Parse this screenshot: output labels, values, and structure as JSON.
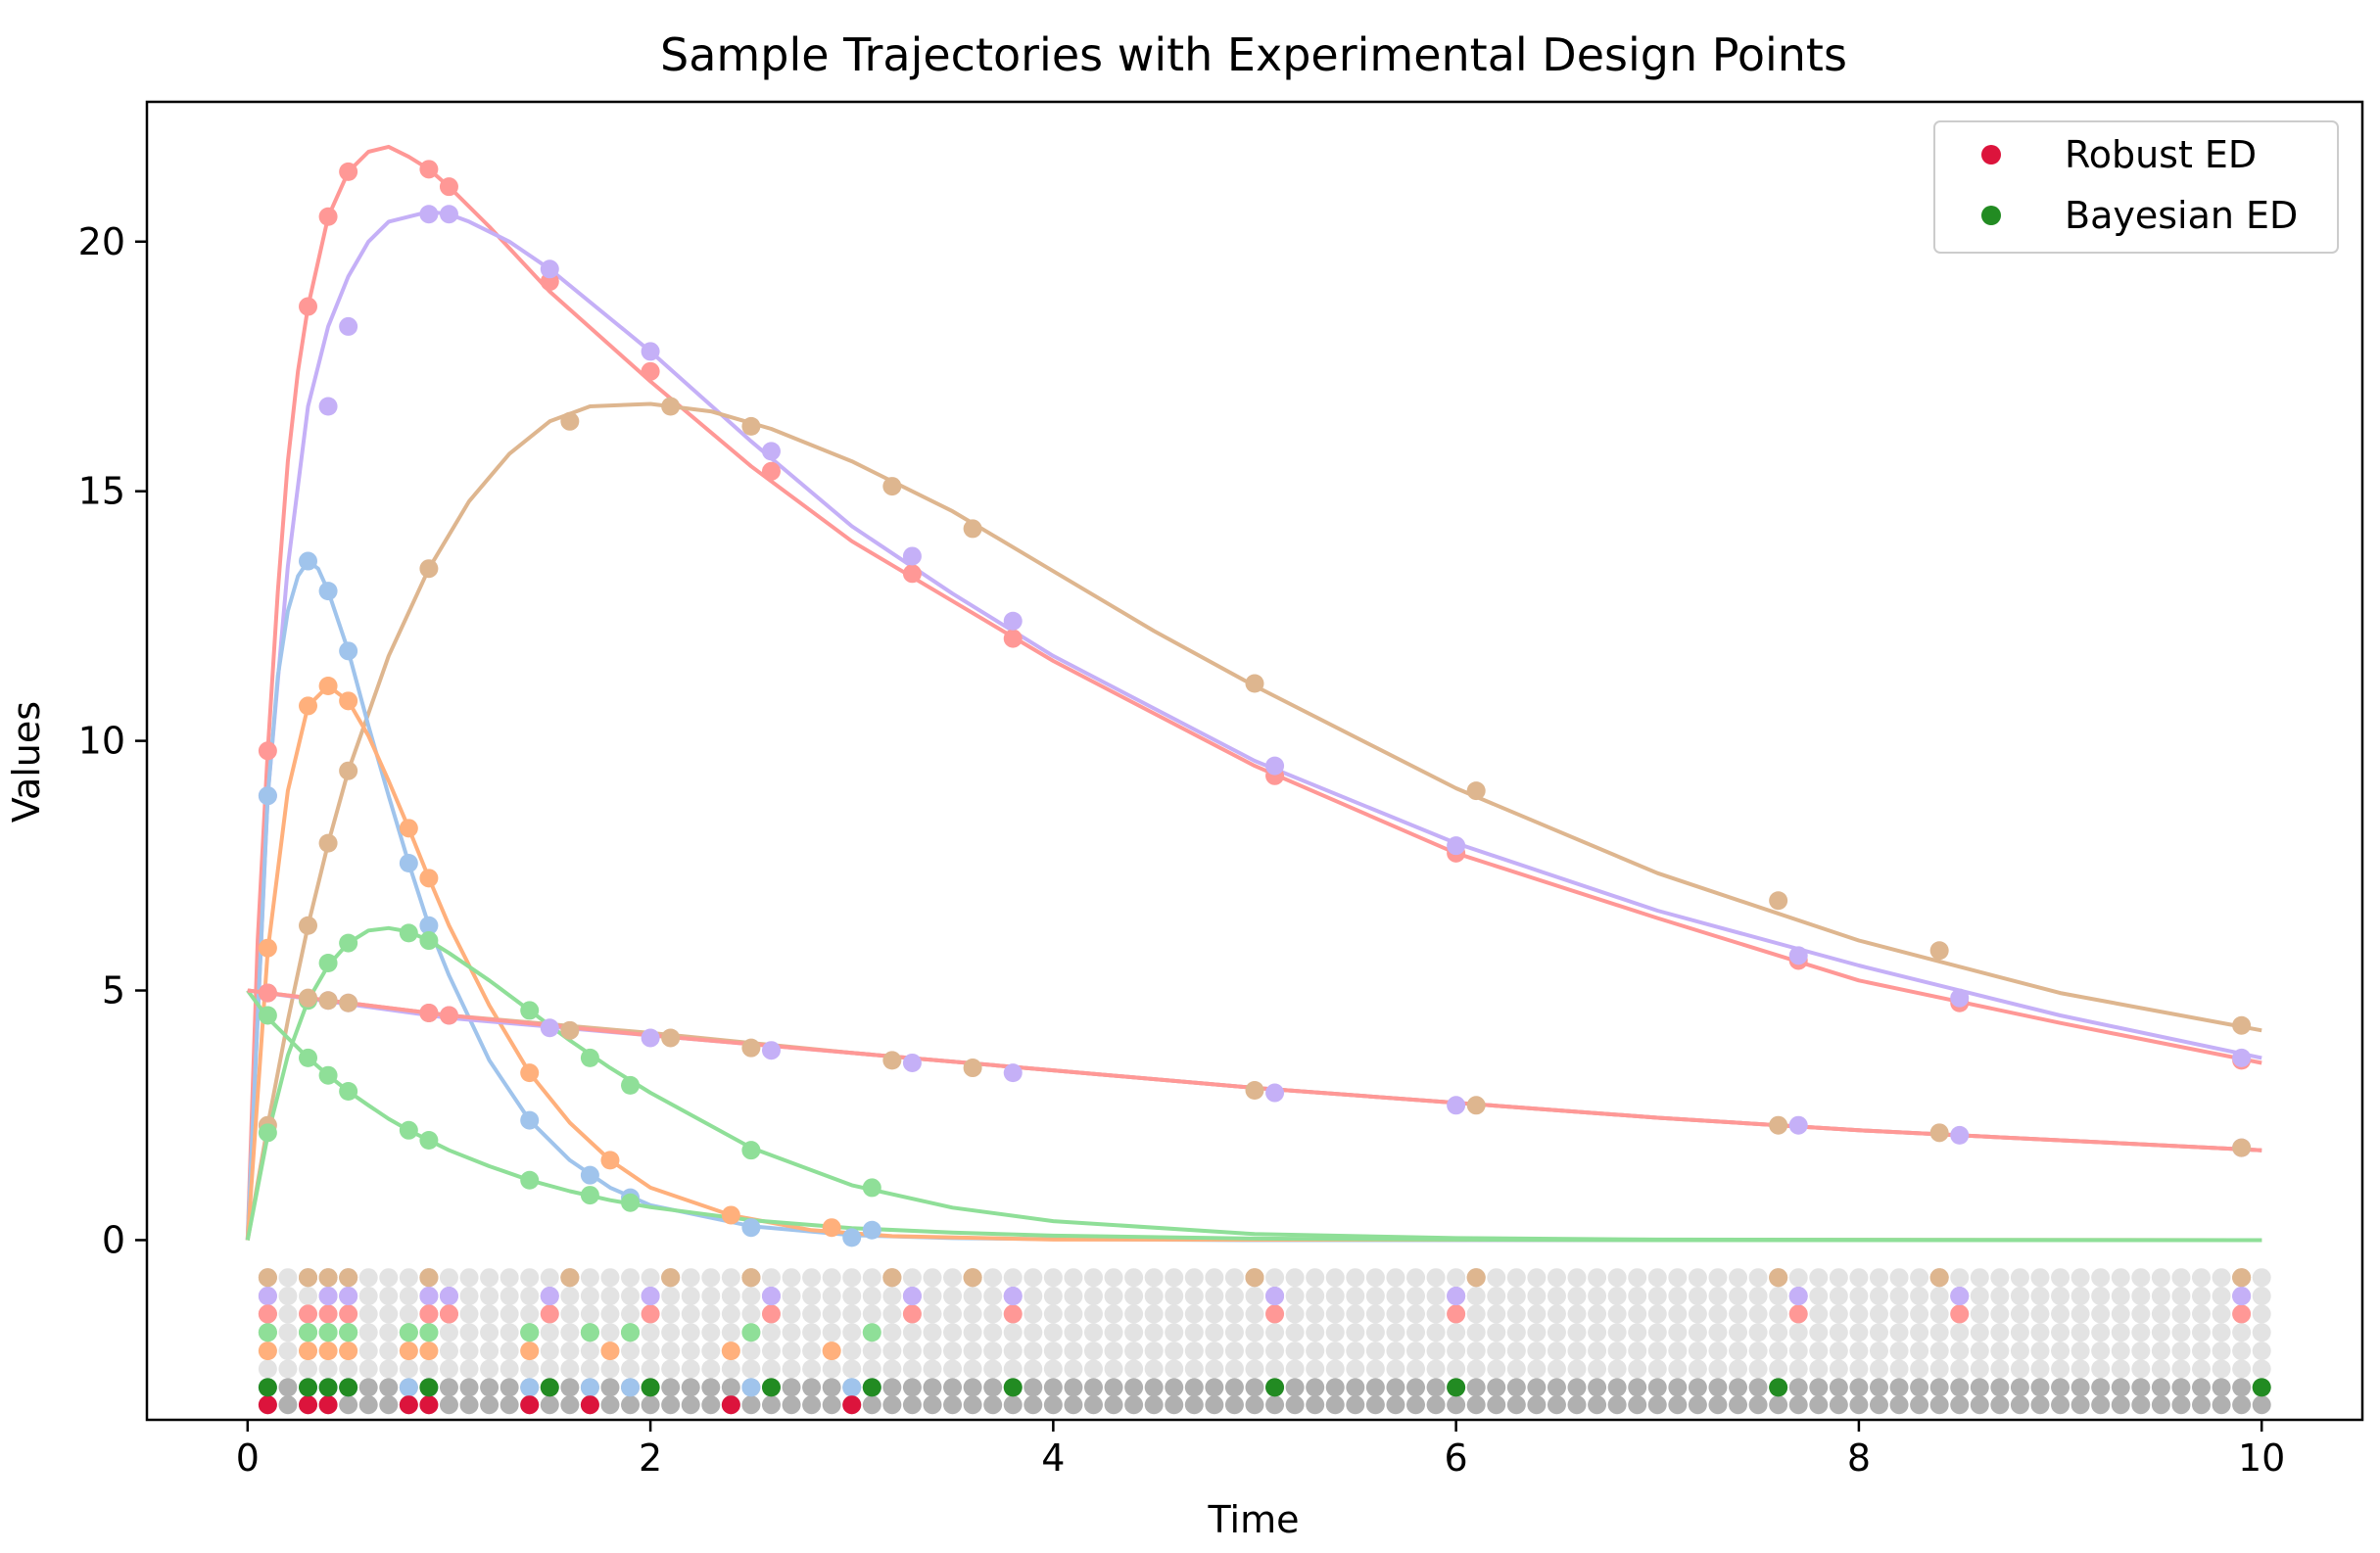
{
  "chart_data": {
    "type": "line",
    "title": "Sample Trajectories with Experimental Design Points",
    "xlabel": "Time",
    "ylabel": "Values",
    "xlim": [
      -0.5,
      10.5
    ],
    "ylim": [
      -3.6,
      22.8
    ],
    "xticks": [
      0,
      2,
      4,
      6,
      8,
      10
    ],
    "xtick_labels": [
      "0",
      "2",
      "4",
      "6",
      "8",
      "10"
    ],
    "yticks": [
      0,
      5,
      10,
      15,
      20
    ],
    "ytick_labels": [
      "0",
      "5",
      "10",
      "15",
      "20"
    ],
    "grid": false,
    "legend_position": "top-right",
    "legend": [
      {
        "label": "Robust ED",
        "color": "#dc143c"
      },
      {
        "label": "Bayesian ED",
        "color": "#228b22"
      }
    ],
    "colors": {
      "red": "#ff9896",
      "purple": "#c5b0f7",
      "tan": "#deb68f",
      "blue": "#a0c4ec",
      "orange": "#ffb07c",
      "green": "#8fdf98",
      "robust": "#dc143c",
      "bayesian": "#228b22",
      "grid_light": "#e3e3e3",
      "grid_dark": "#b0b0b0"
    },
    "candidate_times": [
      0.1,
      0.2,
      0.3,
      0.4,
      0.5,
      0.6,
      0.7,
      0.8,
      0.9,
      1.0,
      1.1,
      1.2,
      1.3,
      1.4,
      1.5,
      1.6,
      1.7,
      1.8,
      1.9,
      2.0,
      2.1,
      2.2,
      2.3,
      2.4,
      2.5,
      2.6,
      2.7,
      2.8,
      2.9,
      3.0,
      3.1,
      3.2,
      3.3,
      3.4,
      3.5,
      3.6,
      3.7,
      3.8,
      3.9,
      4.0,
      4.1,
      4.2,
      4.3,
      4.4,
      4.5,
      4.6,
      4.7,
      4.8,
      4.9,
      5.0,
      5.1,
      5.2,
      5.3,
      5.4,
      5.5,
      5.6,
      5.7,
      5.8,
      5.9,
      6.0,
      6.1,
      6.2,
      6.3,
      6.4,
      6.5,
      6.6,
      6.7,
      6.8,
      6.9,
      7.0,
      7.1,
      7.2,
      7.3,
      7.4,
      7.5,
      7.6,
      7.7,
      7.8,
      7.9,
      8.0,
      8.1,
      8.2,
      8.3,
      8.4,
      8.5,
      8.6,
      8.7,
      8.8,
      8.9,
      9.0,
      9.1,
      9.2,
      9.3,
      9.4,
      9.5,
      9.6,
      9.7,
      9.8,
      9.9,
      10.0
    ],
    "design_row_values": [
      -0.75,
      -1.12,
      -1.48,
      -1.85,
      -2.22,
      -2.58,
      -2.95,
      -3.3
    ],
    "series": [
      {
        "key": "red_fast",
        "color_key": "red",
        "row": 2,
        "x": [
          0,
          0.05,
          0.1,
          0.15,
          0.2,
          0.25,
          0.3,
          0.4,
          0.5,
          0.6,
          0.7,
          0.8,
          0.9,
          1.0,
          1.2,
          1.5,
          2.0,
          2.5,
          3.0,
          3.5,
          4.0,
          5.0,
          6.0,
          7.0,
          8.0,
          9.0,
          10.0
        ],
        "y": [
          0,
          6.0,
          9.8,
          13.0,
          15.6,
          17.4,
          18.7,
          20.5,
          21.4,
          21.8,
          21.9,
          21.7,
          21.45,
          21.1,
          20.3,
          19.0,
          17.2,
          15.5,
          14.0,
          12.8,
          11.6,
          9.5,
          7.75,
          6.45,
          5.2,
          4.35,
          3.55
        ],
        "points_x": [
          0.1,
          0.3,
          0.4,
          0.5,
          0.9,
          1.0,
          1.5,
          2.0,
          2.6,
          3.3,
          3.8,
          5.1,
          6.0,
          7.7,
          8.5,
          9.9
        ],
        "points_y": [
          9.8,
          18.7,
          20.5,
          21.4,
          21.45,
          21.1,
          19.2,
          17.4,
          15.4,
          13.35,
          12.05,
          9.3,
          7.75,
          5.6,
          4.75,
          3.6
        ]
      },
      {
        "key": "purple",
        "color_key": "purple",
        "row": 1,
        "x": [
          0,
          0.1,
          0.2,
          0.3,
          0.4,
          0.5,
          0.6,
          0.7,
          0.8,
          0.9,
          1.0,
          1.1,
          1.3,
          1.5,
          2.0,
          2.5,
          3.0,
          3.5,
          4.0,
          5.0,
          6.0,
          7.0,
          8.0,
          9.0,
          10.0
        ],
        "y": [
          0,
          8.9,
          13.5,
          16.7,
          18.3,
          19.3,
          20.0,
          20.4,
          20.5,
          20.6,
          20.55,
          20.4,
          20.0,
          19.45,
          17.8,
          16.0,
          14.3,
          12.95,
          11.7,
          9.6,
          7.95,
          6.6,
          5.5,
          4.5,
          3.65
        ],
        "points_x": [
          0.1,
          0.4,
          0.5,
          0.9,
          1.0,
          1.5,
          2.0,
          2.6,
          3.3,
          3.8,
          5.1,
          6.0,
          7.7,
          8.5,
          9.9
        ],
        "points_y": [
          8.9,
          16.7,
          18.3,
          20.55,
          20.55,
          19.45,
          17.8,
          15.8,
          13.7,
          12.4,
          9.5,
          7.9,
          5.7,
          4.85,
          3.65
        ]
      },
      {
        "key": "tan_slow",
        "color_key": "tan",
        "row": 0,
        "x": [
          0,
          0.1,
          0.2,
          0.3,
          0.4,
          0.5,
          0.7,
          0.9,
          1.1,
          1.3,
          1.5,
          1.7,
          2.0,
          2.3,
          2.6,
          3.0,
          3.5,
          4.0,
          4.5,
          5.0,
          6.0,
          7.0,
          8.0,
          9.0,
          10.0
        ],
        "y": [
          0,
          2.3,
          4.4,
          6.3,
          7.95,
          9.4,
          11.7,
          13.45,
          14.8,
          15.75,
          16.4,
          16.7,
          16.75,
          16.6,
          16.25,
          15.6,
          14.6,
          13.4,
          12.2,
          11.1,
          9.05,
          7.35,
          6.0,
          4.95,
          4.2
        ],
        "points_x": [
          0.1,
          0.3,
          0.4,
          0.5,
          0.9,
          1.6,
          2.1,
          2.5,
          3.2,
          3.6,
          5.0,
          6.1,
          7.6,
          8.4,
          9.9
        ],
        "points_y": [
          2.3,
          6.3,
          7.95,
          9.4,
          13.45,
          16.4,
          16.7,
          16.3,
          15.1,
          14.25,
          11.15,
          9.0,
          6.8,
          5.8,
          4.3
        ]
      },
      {
        "key": "blue",
        "color_key": "blue",
        "row": 6,
        "x": [
          0,
          0.1,
          0.15,
          0.2,
          0.25,
          0.3,
          0.35,
          0.4,
          0.5,
          0.6,
          0.7,
          0.8,
          0.9,
          1.0,
          1.2,
          1.4,
          1.6,
          1.8,
          2.0,
          2.5,
          3.0,
          3.5,
          4.0,
          5.0,
          6.0,
          10.0
        ],
        "y": [
          0,
          8.9,
          11.3,
          12.6,
          13.3,
          13.6,
          13.45,
          13.0,
          11.8,
          10.3,
          8.9,
          7.55,
          6.3,
          5.3,
          3.6,
          2.4,
          1.6,
          1.05,
          0.7,
          0.28,
          0.1,
          0.04,
          0.02,
          0,
          0,
          0
        ],
        "points_x": [
          0.1,
          0.3,
          0.4,
          0.5,
          0.8,
          0.9,
          1.4,
          1.7,
          1.9,
          2.5,
          3.0,
          3.1
        ],
        "points_y": [
          8.9,
          13.6,
          13.0,
          11.8,
          7.55,
          6.3,
          2.4,
          1.3,
          0.85,
          0.25,
          0.05,
          0.2
        ]
      },
      {
        "key": "orange",
        "color_key": "orange",
        "row": 4,
        "x": [
          0,
          0.1,
          0.2,
          0.3,
          0.4,
          0.5,
          0.6,
          0.7,
          0.8,
          0.9,
          1.0,
          1.2,
          1.4,
          1.6,
          1.8,
          2.0,
          2.4,
          2.8,
          3.2,
          4.0,
          10.0
        ],
        "y": [
          0,
          5.8,
          9.0,
          10.7,
          11.1,
          10.8,
          10.1,
          9.2,
          8.25,
          7.25,
          6.3,
          4.7,
          3.35,
          2.35,
          1.6,
          1.05,
          0.5,
          0.2,
          0.08,
          0.01,
          0
        ],
        "points_x": [
          0.1,
          0.3,
          0.4,
          0.5,
          0.8,
          0.9,
          1.4,
          1.8,
          2.4,
          2.9
        ],
        "points_y": [
          5.85,
          10.7,
          11.1,
          10.8,
          8.25,
          7.25,
          3.35,
          1.6,
          0.5,
          0.25
        ]
      },
      {
        "key": "green_hump",
        "color_key": "green",
        "row": 3,
        "x": [
          0,
          0.1,
          0.2,
          0.3,
          0.4,
          0.5,
          0.6,
          0.7,
          0.8,
          0.9,
          1.0,
          1.2,
          1.4,
          1.6,
          1.8,
          2.0,
          2.5,
          3.0,
          3.5,
          4.0,
          5.0,
          6.0,
          7.0,
          10.0
        ],
        "y": [
          0,
          2.1,
          3.7,
          4.8,
          5.5,
          5.95,
          6.2,
          6.25,
          6.18,
          6.0,
          5.75,
          5.2,
          4.6,
          4.0,
          3.45,
          2.95,
          1.85,
          1.1,
          0.65,
          0.38,
          0.12,
          0.04,
          0.01,
          0
        ],
        "points_x": [
          0.1,
          0.3,
          0.4,
          0.5,
          0.8,
          0.9,
          1.4,
          1.7,
          1.9,
          2.5,
          3.1
        ],
        "points_y": [
          2.15,
          4.8,
          5.55,
          5.95,
          6.15,
          6.0,
          4.6,
          3.65,
          3.1,
          1.8,
          1.05
        ]
      },
      {
        "key": "green_decay",
        "color_key": "green",
        "row": 3,
        "x": [
          0,
          0.1,
          0.2,
          0.3,
          0.4,
          0.5,
          0.6,
          0.7,
          0.8,
          0.9,
          1.0,
          1.2,
          1.4,
          1.6,
          1.8,
          2.0,
          2.5,
          3.0,
          3.5,
          4.0,
          5.0,
          6.0,
          7.0,
          10.0
        ],
        "y": [
          5.0,
          4.45,
          4.05,
          3.65,
          3.3,
          2.98,
          2.7,
          2.43,
          2.2,
          2.0,
          1.8,
          1.48,
          1.2,
          0.98,
          0.8,
          0.66,
          0.4,
          0.24,
          0.15,
          0.09,
          0.03,
          0.01,
          0,
          0
        ],
        "points_x": [
          0.1,
          0.3,
          0.4,
          0.5,
          0.8,
          0.9,
          1.4,
          1.7,
          1.9
        ],
        "points_y": [
          4.5,
          3.65,
          3.3,
          2.98,
          2.2,
          2.0,
          1.2,
          0.9,
          0.75
        ]
      },
      {
        "key": "purple_linear",
        "color_key": "purple",
        "row": 1,
        "x": [
          0,
          1,
          2,
          3,
          4,
          5,
          6,
          7,
          8,
          9,
          10
        ],
        "y": [
          5.0,
          4.45,
          4.1,
          3.75,
          3.4,
          3.05,
          2.75,
          2.45,
          2.2,
          2.0,
          1.8
        ],
        "points_x": [
          0.1,
          0.4,
          0.5,
          0.9,
          1.0,
          1.5,
          2.0,
          2.6,
          3.3,
          3.8,
          5.1,
          6.0,
          7.7,
          8.5,
          9.9
        ],
        "points_y": [
          4.95,
          4.8,
          4.75,
          4.55,
          4.5,
          4.25,
          4.05,
          3.8,
          3.55,
          3.35,
          2.95,
          2.7,
          2.3,
          2.1,
          1.85
        ]
      },
      {
        "key": "tan_linear",
        "color_key": "tan",
        "row": 0,
        "x": [
          0,
          1,
          2,
          3,
          4,
          5,
          6,
          7,
          8,
          9,
          10
        ],
        "y": [
          5.0,
          4.5,
          4.15,
          3.75,
          3.4,
          3.05,
          2.75,
          2.45,
          2.2,
          2.0,
          1.8
        ],
        "points_x": [
          0.1,
          0.3,
          0.4,
          0.5,
          0.9,
          1.6,
          2.1,
          2.5,
          3.2,
          3.6,
          5.0,
          6.1,
          7.6,
          8.4,
          9.9
        ],
        "points_y": [
          4.95,
          4.85,
          4.8,
          4.75,
          4.55,
          4.2,
          4.05,
          3.85,
          3.6,
          3.45,
          3.0,
          2.7,
          2.3,
          2.15,
          1.85
        ]
      },
      {
        "key": "red_linear",
        "color_key": "red",
        "row": 2,
        "x": [
          0,
          1,
          2,
          3,
          4,
          5,
          6,
          7,
          8,
          9,
          10
        ],
        "y": [
          5.0,
          4.5,
          4.1,
          3.75,
          3.4,
          3.05,
          2.75,
          2.45,
          2.2,
          2.0,
          1.8
        ],
        "points_x": [
          0.1,
          0.9,
          1.0
        ],
        "points_y": [
          4.95,
          4.55,
          4.5
        ]
      }
    ],
    "robust_ed_times": [
      0.1,
      0.3,
      0.4,
      0.8,
      0.9,
      1.4,
      1.7,
      2.4,
      3.0
    ],
    "bayesian_ed_times": [
      0.1,
      0.3,
      0.4,
      0.5,
      0.9,
      1.5,
      2.0,
      2.6,
      3.1,
      3.8,
      5.1,
      6.0,
      7.6,
      10.0
    ]
  }
}
